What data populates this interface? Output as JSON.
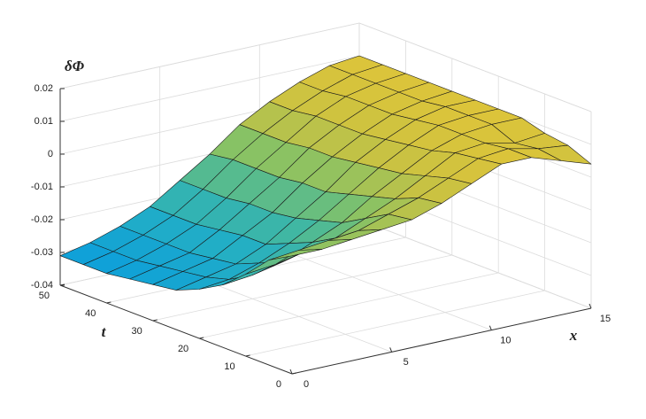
{
  "chart_data": {
    "type": "surface",
    "xlabel": "x",
    "ylabel": "t",
    "zlabel": "δΦ",
    "x": [
      0,
      1.5,
      3,
      4.5,
      6,
      7.5,
      9,
      10.5,
      12,
      13.5,
      15
    ],
    "y": [
      0,
      5,
      10,
      15,
      20,
      25,
      30,
      35,
      40,
      45,
      50
    ],
    "z": [
      [
        -0.004,
        -0.004,
        -0.003,
        -0.002,
        -0.001,
        0.002,
        0.006,
        0.01,
        0.01,
        0.007,
        0.004
      ],
      [
        -0.008,
        -0.007,
        -0.006,
        -0.005,
        -0.002,
        0.001,
        0.005,
        0.009,
        0.01,
        0.008,
        0.007
      ],
      [
        -0.015,
        -0.014,
        -0.012,
        -0.01,
        -0.006,
        -0.002,
        0.003,
        0.008,
        0.009,
        0.007,
        0.008
      ],
      [
        -0.021,
        -0.02,
        -0.018,
        -0.014,
        -0.01,
        -0.004,
        0.001,
        0.006,
        0.009,
        0.01,
        0.01
      ],
      [
        -0.025,
        -0.024,
        -0.021,
        -0.017,
        -0.012,
        -0.006,
        0.0,
        0.005,
        0.009,
        0.01,
        0.01
      ],
      [
        -0.028,
        -0.026,
        -0.024,
        -0.02,
        -0.014,
        -0.008,
        -0.001,
        0.004,
        0.008,
        0.01,
        0.01
      ],
      [
        -0.029,
        -0.027,
        -0.025,
        -0.02,
        -0.015,
        -0.008,
        -0.002,
        0.003,
        0.007,
        0.009,
        0.01
      ],
      [
        -0.03,
        -0.028,
        -0.026,
        -0.021,
        -0.015,
        -0.009,
        -0.002,
        0.003,
        0.007,
        0.009,
        0.01
      ],
      [
        -0.031,
        -0.029,
        -0.026,
        -0.022,
        -0.016,
        -0.009,
        -0.003,
        0.003,
        0.007,
        0.009,
        0.01
      ],
      [
        -0.031,
        -0.029,
        -0.026,
        -0.022,
        -0.016,
        -0.009,
        -0.003,
        0.002,
        0.006,
        0.009,
        0.01
      ],
      [
        -0.031,
        -0.029,
        -0.026,
        -0.022,
        -0.016,
        -0.01,
        -0.003,
        0.002,
        0.006,
        0.009,
        0.01
      ]
    ],
    "xlim": [
      0,
      15
    ],
    "ylim": [
      0,
      50
    ],
    "zlim": [
      -0.04,
      0.02
    ],
    "xticks": [
      0,
      5,
      10,
      15
    ],
    "yticks": [
      0,
      10,
      20,
      30,
      40,
      50
    ],
    "zticks": [
      -0.04,
      -0.03,
      -0.02,
      -0.01,
      0,
      0.01,
      0.02
    ],
    "grid": true,
    "colormap": [
      "#0d9fda",
      "#22aec6",
      "#45b89d",
      "#86c266",
      "#c7c243",
      "#dcc43a"
    ],
    "edgecolor": "#1a1a1a"
  }
}
